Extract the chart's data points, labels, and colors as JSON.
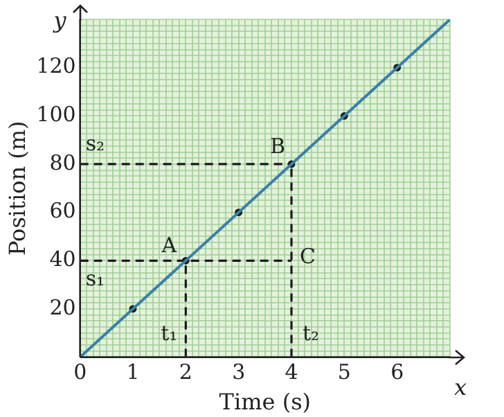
{
  "chart_data": {
    "type": "line",
    "xlabel": "Time (s)",
    "ylabel": "Position (m)",
    "xlim": [
      0,
      7
    ],
    "ylim": [
      0,
      140
    ],
    "xticks": [
      0,
      {
        "value": 0.125,
        "label": null
      },
      {
        "value": 0.25,
        "label": null
      },
      {
        "value": 0.375,
        "label": null
      },
      {
        "value": 0.5,
        "label": null
      },
      {
        "value": 0.625,
        "label": null
      },
      {
        "value": 0.75,
        "label": null
      },
      {
        "value": 0.875,
        "label": null
      },
      1,
      {
        "value": 1.125,
        "label": null
      },
      {
        "value": 1.25,
        "label": null
      },
      {
        "value": 1.375,
        "label": null
      },
      {
        "value": 1.5,
        "label": null
      },
      {
        "value": 1.625,
        "label": null
      },
      {
        "value": 1.75,
        "label": null
      },
      {
        "value": 1.875,
        "label": null
      },
      2,
      {
        "value": 2.125,
        "label": null
      },
      {
        "value": 2.25,
        "label": null
      },
      {
        "value": 2.375,
        "label": null
      },
      {
        "value": 2.5,
        "label": null
      },
      {
        "value": 2.625,
        "label": null
      },
      {
        "value": 2.75,
        "label": null
      },
      {
        "value": 2.875,
        "label": null
      },
      3,
      {
        "value": 3.125,
        "label": null
      },
      {
        "value": 3.25,
        "label": null
      },
      {
        "value": 3.375,
        "label": null
      },
      {
        "value": 3.5,
        "label": null
      },
      {
        "value": 3.625,
        "label": null
      },
      {
        "value": 3.75,
        "label": null
      },
      {
        "value": 3.875,
        "label": null
      },
      4,
      {
        "value": 4.125,
        "label": null
      },
      {
        "value": 4.25,
        "label": null
      },
      {
        "value": 4.375,
        "label": null
      },
      {
        "value": 4.5,
        "label": null
      },
      {
        "value": 4.625,
        "label": null
      },
      {
        "value": 4.75,
        "label": null
      },
      {
        "value": 4.875,
        "label": null
      },
      5,
      {
        "value": 5.125,
        "label": null
      },
      {
        "value": 5.25,
        "label": null
      },
      {
        "value": 5.375,
        "label": null
      },
      {
        "value": 5.5,
        "label": null
      },
      {
        "value": 5.625,
        "label": null
      },
      {
        "value": 5.75,
        "label": null
      },
      {
        "value": 5.875,
        "label": null
      },
      6,
      {
        "value": 6.125,
        "label": null
      },
      {
        "value": 6.25,
        "label": null
      },
      {
        "value": 6.375,
        "label": null
      },
      {
        "value": 6.5,
        "label": null
      },
      {
        "value": 6.625,
        "label": null
      },
      {
        "value": 6.75,
        "label": null
      },
      {
        "value": 6.875,
        "label": null
      },
      {
        "value": 7,
        "label": null
      }
    ],
    "yticks": [
      {
        "value": 0,
        "label": null
      },
      {
        "value": 2.5,
        "label": null
      },
      {
        "value": 5,
        "label": null
      },
      {
        "value": 7.5,
        "label": null
      },
      {
        "value": 10,
        "label": null
      },
      {
        "value": 12.5,
        "label": null
      },
      {
        "value": 15,
        "label": null
      },
      {
        "value": 17.5,
        "label": null
      },
      20,
      {
        "value": 22.5,
        "label": null
      },
      {
        "value": 25,
        "label": null
      },
      {
        "value": 27.5,
        "label": null
      },
      {
        "value": 30,
        "label": null
      },
      {
        "value": 32.5,
        "label": null
      },
      {
        "value": 35,
        "label": null
      },
      {
        "value": 37.5,
        "label": null
      },
      40,
      {
        "value": 42.5,
        "label": null
      },
      {
        "value": 45,
        "label": null
      },
      {
        "value": 47.5,
        "label": null
      },
      {
        "value": 50,
        "label": null
      },
      {
        "value": 52.5,
        "label": null
      },
      {
        "value": 55,
        "label": null
      },
      {
        "value": 57.5,
        "label": null
      },
      60,
      {
        "value": 62.5,
        "label": null
      },
      {
        "value": 65,
        "label": null
      },
      {
        "value": 67.5,
        "label": null
      },
      {
        "value": 70,
        "label": null
      },
      {
        "value": 72.5,
        "label": null
      },
      {
        "value": 75,
        "label": null
      },
      {
        "value": 77.5,
        "label": null
      },
      80,
      {
        "value": 82.5,
        "label": null
      },
      {
        "value": 85,
        "label": null
      },
      {
        "value": 87.5,
        "label": null
      },
      {
        "value": 90,
        "label": null
      },
      {
        "value": 92.5,
        "label": null
      },
      {
        "value": 95,
        "label": null
      },
      {
        "value": 97.5,
        "label": null
      },
      100,
      {
        "value": 102.5,
        "label": null
      },
      {
        "value": 105,
        "label": null
      },
      {
        "value": 107.5,
        "label": null
      },
      {
        "value": 110,
        "label": null
      },
      {
        "value": 112.5,
        "label": null
      },
      {
        "value": 115,
        "label": null
      },
      {
        "value": 117.5,
        "label": null
      },
      120,
      {
        "value": 122.5,
        "label": null
      },
      {
        "value": 125,
        "label": null
      },
      {
        "value": 127.5,
        "label": null
      },
      {
        "value": 130,
        "label": null
      },
      {
        "value": 132.5,
        "label": null
      },
      {
        "value": 135,
        "label": null
      },
      {
        "value": 137.5,
        "label": null
      },
      {
        "value": 140,
        "label": null
      }
    ],
    "grid": true,
    "legend": false,
    "series": [
      {
        "type": "line",
        "color": "#3a7fa6",
        "x": [
          0,
          7
        ],
        "values": [
          0,
          140
        ],
        "marker": "none",
        "line_style": "solid"
      },
      {
        "type": "scatter",
        "color": "#1a1a1a",
        "x": [
          1,
          2,
          3,
          4,
          5,
          6
        ],
        "values": [
          20,
          40,
          60,
          80,
          100,
          120
        ],
        "marker": "circle"
      },
      {
        "type": "line",
        "color": "#1a1a1a",
        "x": [
          0,
          4
        ],
        "values": [
          40,
          40
        ],
        "marker": "none",
        "line_style": "dashed"
      },
      {
        "type": "line",
        "color": "#1a1a1a",
        "x": [
          0,
          4
        ],
        "values": [
          80,
          80
        ],
        "marker": "none",
        "line_style": "dashed"
      },
      {
        "type": "line",
        "color": "#1a1a1a",
        "x": [
          2,
          2
        ],
        "values": [
          0,
          40
        ],
        "marker": "none",
        "line_style": "dashed"
      },
      {
        "type": "line",
        "color": "#1a1a1a",
        "x": [
          4,
          4
        ],
        "values": [
          0,
          80
        ],
        "marker": "none",
        "line_style": "dashed"
      }
    ],
    "annotations": [
      "x",
      "y",
      {
        "text": "A",
        "x": 2,
        "y": 40
      },
      {
        "text": "B",
        "x": 4,
        "y": 80
      },
      {
        "text": "C",
        "x": 4,
        "y": 40
      },
      {
        "text": "s₁",
        "x": 0,
        "y": 40
      },
      {
        "text": "s₂",
        "x": 0,
        "y": 80
      },
      {
        "text": "t₁",
        "x": 2,
        "y": 0
      },
      {
        "text": "t₂",
        "x": 4,
        "y": 0
      }
    ]
  }
}
